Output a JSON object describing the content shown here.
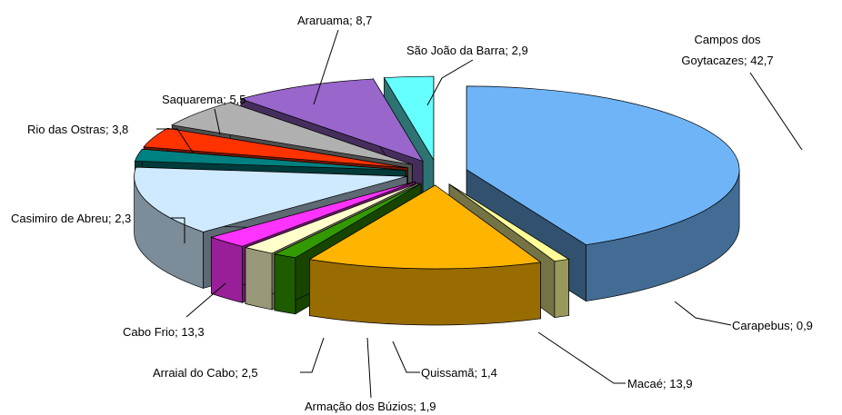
{
  "chart_data": {
    "type": "pie3d",
    "categories": [
      "Campos dos Goytacazes",
      "Carapebus",
      "Macaé",
      "Quissamã",
      "Armação dos Búzios",
      "Arraial do Cabo",
      "Cabo Frio",
      "Casimiro de Abreu",
      "Rio das Ostras",
      "Saquarema",
      "Araruama",
      "São João da Barra"
    ],
    "values": [
      42.7,
      0.9,
      13.9,
      1.4,
      1.9,
      2.5,
      13.3,
      2.3,
      3.8,
      5.5,
      8.7,
      2.9
    ],
    "value_labels": [
      "42,7",
      "0,9",
      "13,9",
      "1,4",
      "1,9",
      "2,5",
      "13,3",
      "2,3",
      "3,8",
      "5,5",
      "8,7",
      "2,9"
    ],
    "label_separator": "; ",
    "colors": [
      "#6fb4f7",
      "#ffff99",
      "#ffb400",
      "#339900",
      "#ffffcc",
      "#ff33ff",
      "#cfe9ff",
      "#008080",
      "#ff3300",
      "#b0b0b0",
      "#9966cc",
      "#66ffff"
    ]
  }
}
